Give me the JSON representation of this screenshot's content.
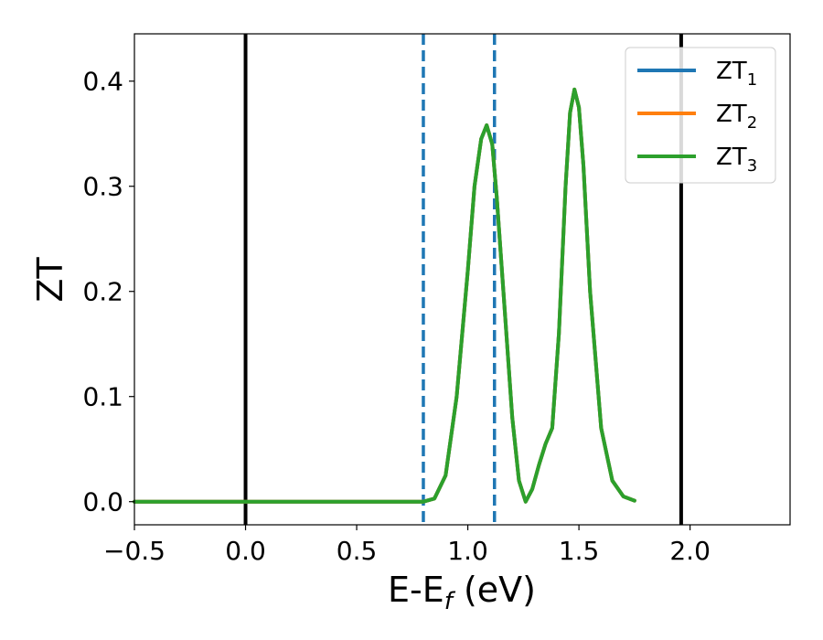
{
  "chart_data": {
    "type": "line",
    "xlabel": "E-E",
    "xlabel_subscript": "f",
    "xlabel_suffix": " (eV)",
    "ylabel": "ZT",
    "xlim": [
      -0.5,
      2.45
    ],
    "ylim": [
      -0.022,
      0.445
    ],
    "x_ticks": [
      -0.5,
      0.0,
      0.5,
      1.0,
      1.5,
      2.0
    ],
    "x_tick_labels": [
      "−0.5",
      "0.0",
      "0.5",
      "1.0",
      "1.5",
      "2.0"
    ],
    "y_ticks": [
      0.0,
      0.1,
      0.2,
      0.3,
      0.4
    ],
    "y_tick_labels": [
      "0.0",
      "0.1",
      "0.2",
      "0.3",
      "0.4"
    ],
    "grid": false,
    "legend_position": "top-right",
    "vertical_lines": [
      {
        "x": 0.0,
        "style": "solid",
        "color": "#000000"
      },
      {
        "x": 1.96,
        "style": "solid",
        "color": "#000000"
      },
      {
        "x": 0.8,
        "style": "dashed",
        "color": "#1f77b4"
      },
      {
        "x": 1.12,
        "style": "dashed",
        "color": "#1f77b4"
      }
    ],
    "series": [
      {
        "name": "ZT",
        "subscript": "1",
        "color": "#1f77b4",
        "x": [
          -0.5,
          0.0,
          0.5,
          0.8,
          0.85,
          0.9,
          0.95,
          1.0,
          1.03,
          1.06,
          1.085,
          1.11,
          1.13,
          1.16,
          1.2,
          1.23,
          1.26,
          1.29,
          1.32,
          1.35,
          1.38,
          1.41,
          1.44,
          1.46,
          1.48,
          1.5,
          1.52,
          1.55,
          1.6,
          1.65,
          1.7,
          1.75
        ],
        "y": [
          0.0,
          0.0,
          0.0,
          0.0,
          0.003,
          0.025,
          0.1,
          0.22,
          0.3,
          0.345,
          0.358,
          0.34,
          0.29,
          0.2,
          0.08,
          0.02,
          0.0,
          0.012,
          0.035,
          0.055,
          0.07,
          0.16,
          0.3,
          0.37,
          0.392,
          0.375,
          0.32,
          0.2,
          0.07,
          0.02,
          0.005,
          0.001
        ]
      },
      {
        "name": "ZT",
        "subscript": "2",
        "color": "#ff7f0e",
        "x": [
          -0.5,
          0.0,
          0.5,
          0.8,
          0.85,
          0.9,
          0.95,
          1.0,
          1.03,
          1.06,
          1.085,
          1.11,
          1.13,
          1.16,
          1.2,
          1.23,
          1.26,
          1.29,
          1.32,
          1.35,
          1.38,
          1.41,
          1.44,
          1.46,
          1.48,
          1.5,
          1.52,
          1.55,
          1.6,
          1.65,
          1.7,
          1.75
        ],
        "y": [
          0.0,
          0.0,
          0.0,
          0.0,
          0.003,
          0.025,
          0.1,
          0.22,
          0.3,
          0.345,
          0.358,
          0.34,
          0.29,
          0.2,
          0.08,
          0.02,
          0.0,
          0.012,
          0.035,
          0.055,
          0.07,
          0.16,
          0.3,
          0.37,
          0.392,
          0.375,
          0.32,
          0.2,
          0.07,
          0.02,
          0.005,
          0.001
        ]
      },
      {
        "name": "ZT",
        "subscript": "3",
        "color": "#2ca02c",
        "x": [
          -0.5,
          0.0,
          0.5,
          0.8,
          0.85,
          0.9,
          0.95,
          1.0,
          1.03,
          1.06,
          1.085,
          1.11,
          1.13,
          1.16,
          1.2,
          1.23,
          1.26,
          1.29,
          1.32,
          1.35,
          1.38,
          1.41,
          1.44,
          1.46,
          1.48,
          1.5,
          1.52,
          1.55,
          1.6,
          1.65,
          1.7,
          1.75
        ],
        "y": [
          0.0,
          0.0,
          0.0,
          0.0,
          0.003,
          0.025,
          0.1,
          0.22,
          0.3,
          0.345,
          0.358,
          0.34,
          0.29,
          0.2,
          0.08,
          0.02,
          0.0,
          0.012,
          0.035,
          0.055,
          0.07,
          0.16,
          0.3,
          0.37,
          0.392,
          0.375,
          0.32,
          0.2,
          0.07,
          0.02,
          0.005,
          0.001
        ]
      }
    ]
  }
}
